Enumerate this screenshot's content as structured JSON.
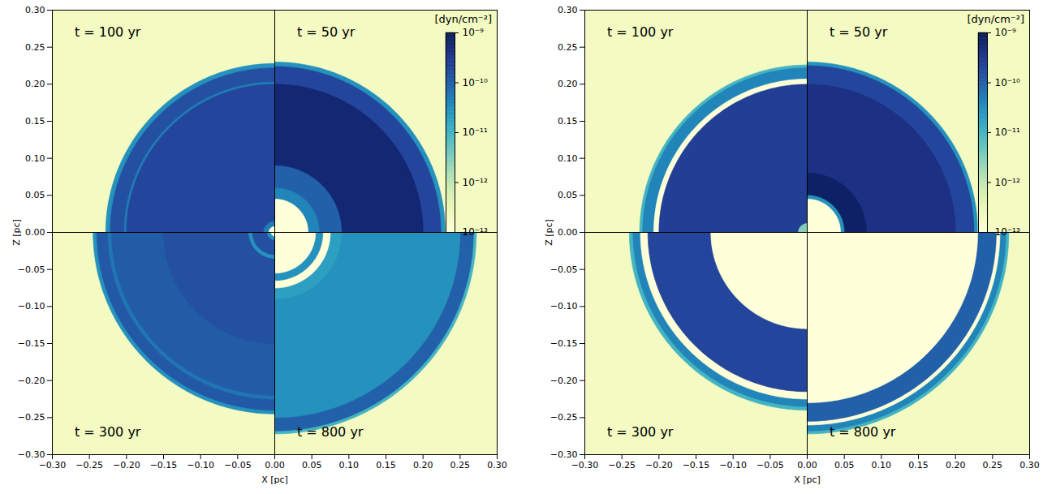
{
  "chart_data": [
    {
      "type": "heatmap",
      "xlabel": "X [pc]",
      "ylabel": "Z [pc]",
      "xlim": [
        -0.3,
        0.3
      ],
      "ylim": [
        -0.3,
        0.3
      ],
      "xticks": [
        {
          "value": -0.3,
          "label": "−0.30"
        },
        {
          "value": -0.25,
          "label": "−0.25"
        },
        {
          "value": -0.2,
          "label": "−0.20"
        },
        {
          "value": -0.15,
          "label": "−0.15"
        },
        {
          "value": -0.1,
          "label": "−0.10"
        },
        {
          "value": -0.05,
          "label": "−0.05"
        },
        {
          "value": 0,
          "label": "0.00"
        },
        {
          "value": 0.05,
          "label": "0.05"
        },
        {
          "value": 0.1,
          "label": "0.10"
        },
        {
          "value": 0.15,
          "label": "0.15"
        },
        {
          "value": 0.2,
          "label": "0.20"
        },
        {
          "value": 0.25,
          "label": "0.25"
        },
        {
          "value": 0.3,
          "label": "0.30"
        }
      ],
      "yticks": [
        {
          "value": -0.3,
          "label": "−0.30"
        },
        {
          "value": -0.25,
          "label": "−0.25"
        },
        {
          "value": -0.2,
          "label": "−0.20"
        },
        {
          "value": -0.15,
          "label": "−0.15"
        },
        {
          "value": -0.1,
          "label": "−0.10"
        },
        {
          "value": -0.05,
          "label": "−0.05"
        },
        {
          "value": 0,
          "label": "0.00"
        },
        {
          "value": 0.05,
          "label": "0.05"
        },
        {
          "value": 0.1,
          "label": "0.10"
        },
        {
          "value": 0.15,
          "label": "0.15"
        },
        {
          "value": 0.2,
          "label": "0.20"
        },
        {
          "value": 0.25,
          "label": "0.25"
        },
        {
          "value": 0.3,
          "label": "0.30"
        }
      ],
      "colorbar": {
        "label": "[dyn/cm⁻²]",
        "range": [
          1e-13,
          1e-09
        ],
        "log": true,
        "color": "ylgnbu",
        "ticks": [
          {
            "value": 1e-09,
            "label": "10⁻⁹"
          },
          {
            "value": 1e-10,
            "label": "10⁻¹⁰"
          },
          {
            "value": 1e-11,
            "label": "10⁻¹¹"
          },
          {
            "value": 1e-12,
            "label": "10⁻¹²"
          },
          {
            "value": 1e-13,
            "label": "10⁻¹³"
          }
        ]
      },
      "background": 2e-13,
      "quadrants": [
        {
          "label": "t = 100 yr",
          "radii": [
            0.008,
            0.015,
            0.2,
            0.203,
            0.222,
            0.228
          ],
          "pressure": [
            1e-13,
            5e-11,
            2e-10,
            5e-11,
            1.5e-10,
            3e-11
          ]
        },
        {
          "label": "t = 50 yr",
          "radii": [
            0.045,
            0.06,
            0.09,
            0.2,
            0.224,
            0.23
          ],
          "pressure": [
            1e-13,
            4e-11,
            1e-10,
            6e-10,
            2e-10,
            3e-11
          ]
        },
        {
          "label": "t = 300 yr",
          "radii": [
            0.005,
            0.01,
            0.03,
            0.035,
            0.15,
            0.22,
            0.225,
            0.24,
            0.245
          ],
          "pressure": [
            1e-13,
            3e-11,
            1.5e-10,
            3e-11,
            1.5e-10,
            1.1e-10,
            6e-11,
            1.2e-10,
            3e-11
          ]
        },
        {
          "label": "t = 800 yr",
          "radii": [
            0.055,
            0.065,
            0.075,
            0.09,
            0.25,
            0.268,
            0.272
          ],
          "pressure": [
            1e-13,
            3e-11,
            1e-13,
            2e-11,
            3e-11,
            1e-10,
            1e-11
          ]
        }
      ]
    },
    {
      "type": "heatmap",
      "xlabel": "X [pc]",
      "ylabel": "Z [pc]",
      "xlim": [
        -0.3,
        0.3
      ],
      "ylim": [
        -0.3,
        0.3
      ],
      "xticks": [
        {
          "value": -0.3,
          "label": "−0.30"
        },
        {
          "value": -0.25,
          "label": "−0.25"
        },
        {
          "value": -0.2,
          "label": "−0.20"
        },
        {
          "value": -0.15,
          "label": "−0.15"
        },
        {
          "value": -0.1,
          "label": "−0.10"
        },
        {
          "value": -0.05,
          "label": "−0.05"
        },
        {
          "value": 0,
          "label": "0.00"
        },
        {
          "value": 0.05,
          "label": "0.05"
        },
        {
          "value": 0.1,
          "label": "0.10"
        },
        {
          "value": 0.15,
          "label": "0.15"
        },
        {
          "value": 0.2,
          "label": "0.20"
        },
        {
          "value": 0.25,
          "label": "0.25"
        },
        {
          "value": 0.3,
          "label": "0.30"
        }
      ],
      "yticks": [
        {
          "value": -0.3,
          "label": "−0.30"
        },
        {
          "value": -0.25,
          "label": "−0.25"
        },
        {
          "value": -0.2,
          "label": "−0.20"
        },
        {
          "value": -0.15,
          "label": "−0.15"
        },
        {
          "value": -0.1,
          "label": "−0.10"
        },
        {
          "value": -0.05,
          "label": "−0.05"
        },
        {
          "value": 0,
          "label": "0.00"
        },
        {
          "value": 0.05,
          "label": "0.05"
        },
        {
          "value": 0.1,
          "label": "0.10"
        },
        {
          "value": 0.15,
          "label": "0.15"
        },
        {
          "value": 0.2,
          "label": "0.20"
        },
        {
          "value": 0.25,
          "label": "0.25"
        },
        {
          "value": 0.3,
          "label": "0.30"
        }
      ],
      "colorbar": {
        "label": "[dyn/cm⁻²]",
        "range": [
          1e-13,
          1e-09
        ],
        "log": true,
        "color": "ylgnbu",
        "ticks": [
          {
            "value": 1e-09,
            "label": "10⁻⁹"
          },
          {
            "value": 1e-10,
            "label": "10⁻¹⁰"
          },
          {
            "value": 1e-11,
            "label": "10⁻¹¹"
          },
          {
            "value": 1e-12,
            "label": "10⁻¹²"
          },
          {
            "value": 1e-13,
            "label": "10⁻¹³"
          }
        ]
      },
      "background": 2e-13,
      "quadrants": [
        {
          "label": "t = 100 yr",
          "radii": [
            0.012,
            0.2,
            0.207,
            0.222,
            0.226
          ],
          "pressure": [
            3e-12,
            2.5e-10,
            1e-13,
            4e-11,
            1e-11
          ]
        },
        {
          "label": "t = 50 yr",
          "radii": [
            0.045,
            0.05,
            0.08,
            0.2,
            0.225,
            0.23
          ],
          "pressure": [
            1e-13,
            3e-11,
            8e-10,
            4e-10,
            2e-10,
            3e-11
          ]
        },
        {
          "label": "t = 300 yr",
          "radii": [
            0.13,
            0.215,
            0.225,
            0.235,
            0.24
          ],
          "pressure": [
            1e-13,
            2e-10,
            1e-13,
            4e-11,
            1e-11
          ]
        },
        {
          "label": "t = 800 yr",
          "radii": [
            0.23,
            0.255,
            0.26,
            0.268,
            0.272
          ],
          "pressure": [
            1e-13,
            1e-10,
            1e-13,
            4e-11,
            1e-11
          ]
        }
      ]
    }
  ]
}
